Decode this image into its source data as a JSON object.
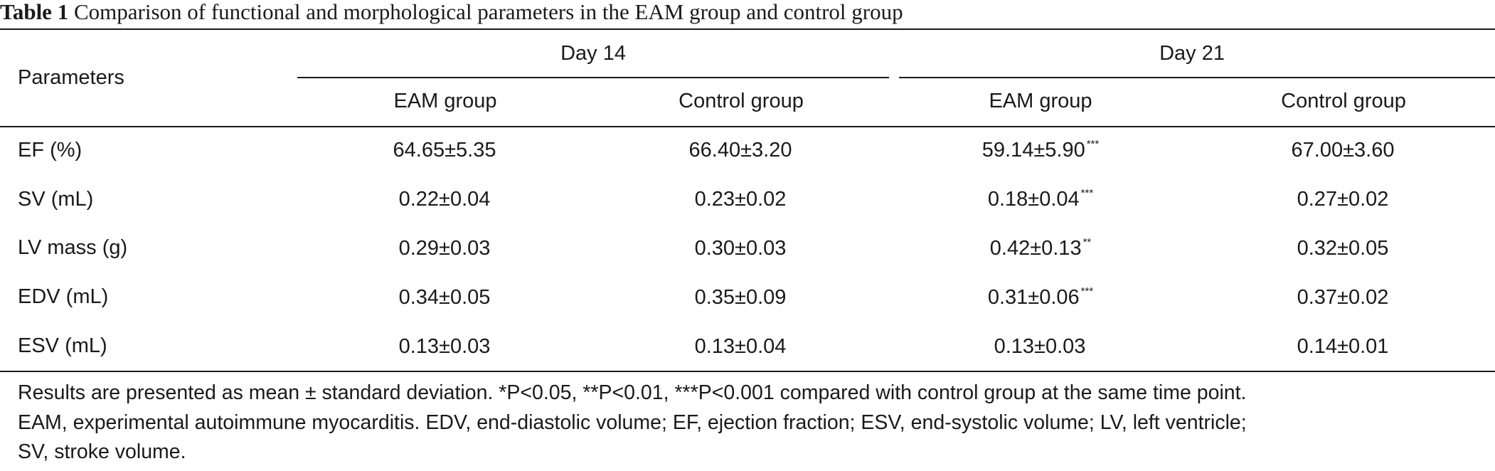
{
  "caption": {
    "label": "Table 1",
    "title": "Comparison of functional and morphological parameters in the EAM group and control group"
  },
  "table": {
    "param_header": "Parameters",
    "day_headers": [
      "Day 14",
      "Day 21"
    ],
    "group_headers": [
      "EAM group",
      "Control group",
      "EAM group",
      "Control group"
    ],
    "rows": [
      {
        "label": "EF (%)",
        "cells": [
          {
            "value": "64.65±5.35",
            "sig": ""
          },
          {
            "value": "66.40±3.20",
            "sig": ""
          },
          {
            "value": "59.14±5.90",
            "sig": "***"
          },
          {
            "value": "67.00±3.60",
            "sig": ""
          }
        ]
      },
      {
        "label": "SV (mL)",
        "cells": [
          {
            "value": "0.22±0.04",
            "sig": ""
          },
          {
            "value": "0.23±0.02",
            "sig": ""
          },
          {
            "value": "0.18±0.04",
            "sig": "***"
          },
          {
            "value": "0.27±0.02",
            "sig": ""
          }
        ]
      },
      {
        "label": "LV mass (g)",
        "cells": [
          {
            "value": "0.29±0.03",
            "sig": ""
          },
          {
            "value": "0.30±0.03",
            "sig": ""
          },
          {
            "value": "0.42±0.13",
            "sig": "**"
          },
          {
            "value": "0.32±0.05",
            "sig": ""
          }
        ]
      },
      {
        "label": "EDV (mL)",
        "cells": [
          {
            "value": "0.34±0.05",
            "sig": ""
          },
          {
            "value": "0.35±0.09",
            "sig": ""
          },
          {
            "value": "0.31±0.06",
            "sig": "***"
          },
          {
            "value": "0.37±0.02",
            "sig": ""
          }
        ]
      },
      {
        "label": "ESV (mL)",
        "cells": [
          {
            "value": "0.13±0.03",
            "sig": ""
          },
          {
            "value": "0.13±0.04",
            "sig": ""
          },
          {
            "value": "0.13±0.03",
            "sig": ""
          },
          {
            "value": "0.14±0.01",
            "sig": ""
          }
        ]
      }
    ]
  },
  "footnote": {
    "lines": [
      "Results are presented as mean ± standard deviation. *P<0.05, **P<0.01, ***P<0.001 compared with control group at the same time point.",
      "EAM, experimental autoimmune myocarditis. EDV, end-diastolic volume; EF, ejection fraction; ESV, end-systolic volume; LV, left ventricle;",
      "SV, stroke volume."
    ]
  }
}
